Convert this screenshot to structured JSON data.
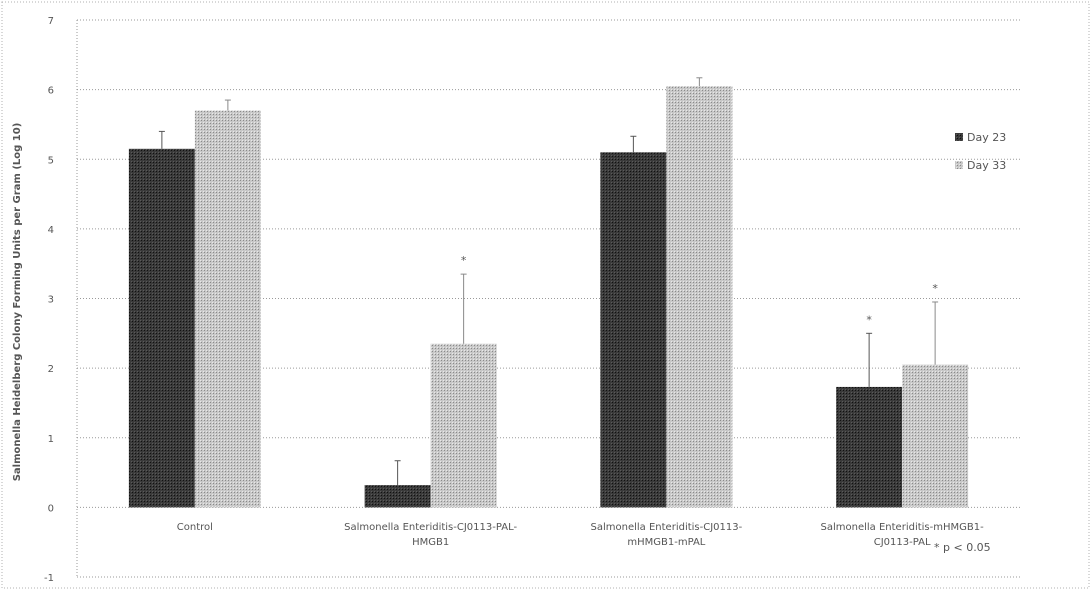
{
  "chart_data": {
    "type": "bar",
    "ylabel": "Salmonella Heidelberg Colony Forming Units per Gram (Log 10)",
    "ylim": [
      -1,
      7
    ],
    "yticks": [
      -1,
      0,
      1,
      2,
      3,
      4,
      5,
      6,
      7
    ],
    "grid": true,
    "legend_position": "top-right",
    "categories": [
      [
        "Control"
      ],
      [
        "Salmonella Enteriditis-CJ0113-PAL-",
        "HMGB1"
      ],
      [
        "Salmonella Enteriditis-CJ0113-",
        "mHMGB1-mPAL"
      ],
      [
        "Salmonella Enteriditis-mHMGB1-",
        "CJ0113-PAL"
      ]
    ],
    "series": [
      {
        "name": "Day 23",
        "color": "#2a2a2a",
        "values": [
          5.15,
          0.32,
          5.1,
          1.73
        ],
        "errors": [
          0.25,
          0.35,
          0.23,
          0.77
        ],
        "significant": [
          false,
          false,
          false,
          true
        ]
      },
      {
        "name": "Day 33",
        "color": "#bdbdbd",
        "values": [
          5.7,
          2.35,
          6.05,
          2.05
        ],
        "errors": [
          0.15,
          1.0,
          0.12,
          0.9
        ],
        "significant": [
          false,
          true,
          false,
          true
        ]
      }
    ],
    "significance_marker": "*",
    "annotation": "* p < 0.05"
  }
}
